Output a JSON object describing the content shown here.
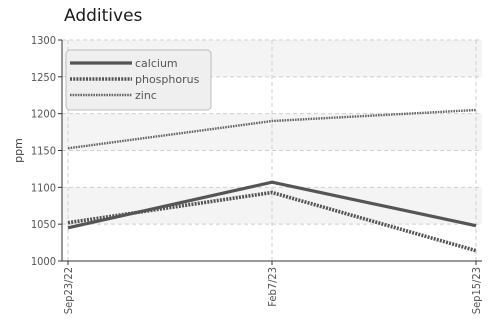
{
  "chart_data": {
    "type": "line",
    "title": "Additives",
    "xlabel": "",
    "ylabel": "ppm",
    "x": [
      "Sep23/22",
      "Feb7/23",
      "Sep15/23"
    ],
    "ylim": [
      1000,
      1300
    ],
    "yticks": [
      1000,
      1050,
      1100,
      1150,
      1200,
      1250,
      1300
    ],
    "grid": true,
    "legend_position": "top-left",
    "series": [
      {
        "name": "calcium",
        "values": [
          1045,
          1107,
          1048
        ],
        "color": "#555555",
        "style": "solid"
      },
      {
        "name": "phosphorus",
        "values": [
          1052,
          1093,
          1014
        ],
        "color": "#555555",
        "style": "dotted"
      },
      {
        "name": "zinc",
        "values": [
          1153,
          1190,
          1205
        ],
        "color": "#666666",
        "style": "dotted-thin"
      }
    ]
  }
}
